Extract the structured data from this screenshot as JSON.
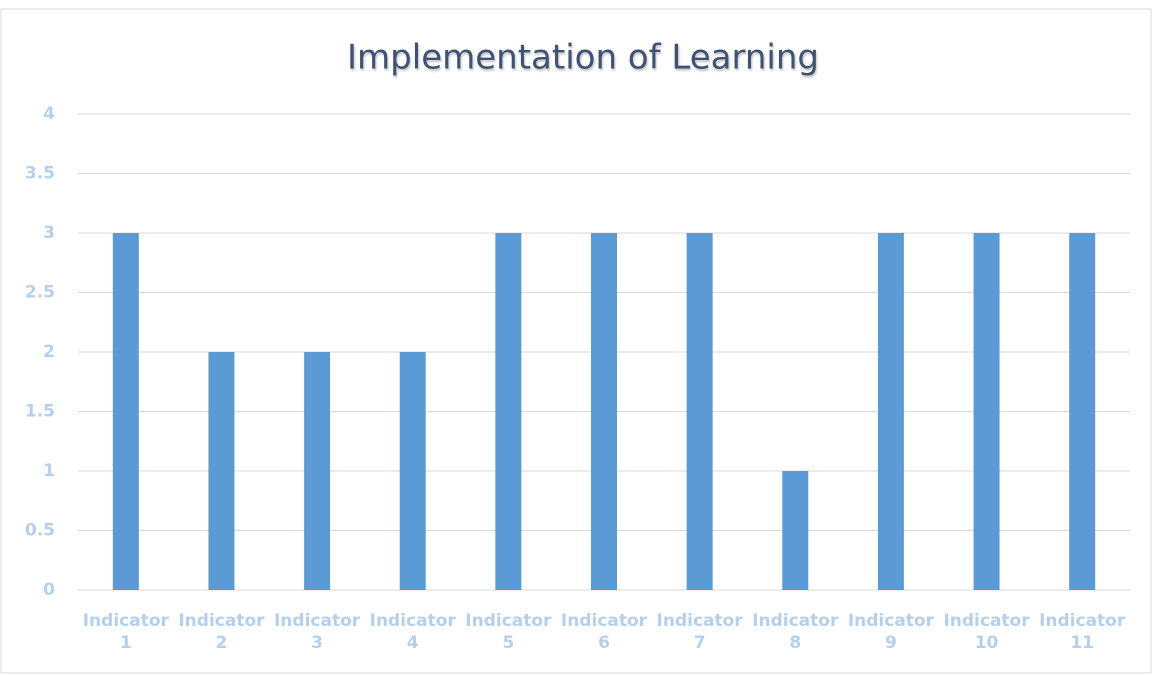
{
  "chart_data": {
    "type": "bar",
    "title": "Implementation of Learning",
    "categories": [
      "Indicator 1",
      "Indicator 2",
      "Indicator 3",
      "Indicator 4",
      "Indicator 5",
      "Indicator 6",
      "Indicator 7",
      "Indicator 8",
      "Indicator 9",
      "Indicator 10",
      "Indicator 11"
    ],
    "values": [
      3,
      2,
      2,
      2,
      3,
      3,
      3,
      1,
      3,
      3,
      3
    ],
    "color": "#5b9bd5",
    "ylim": [
      0,
      4
    ],
    "yticks": [
      0,
      0.5,
      1,
      1.5,
      2,
      2.5,
      3,
      3.5,
      4
    ],
    "grid": true
  }
}
